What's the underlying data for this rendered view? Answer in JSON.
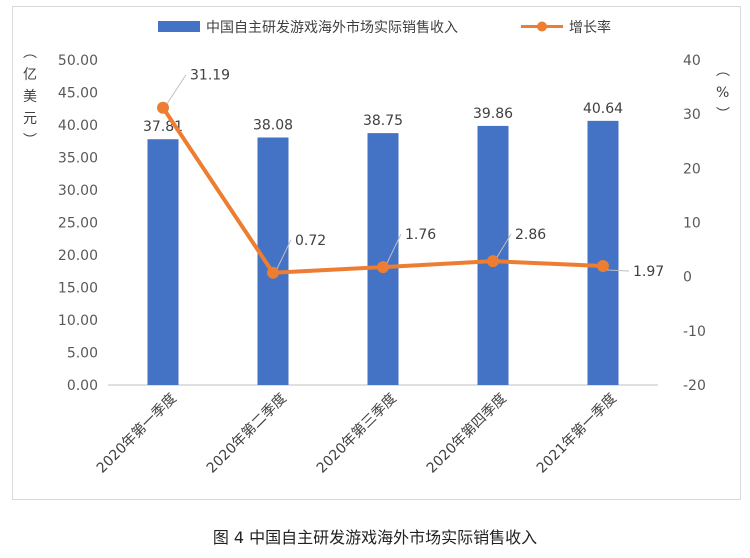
{
  "caption": "图 4  中国自主研发游戏海外市场实际销售收入",
  "chart_data": {
    "type": "bar",
    "categories": [
      "2020年第一季度",
      "2020年第二季度",
      "2020年第三季度",
      "2020年第四季度",
      "2021年第一季度"
    ],
    "series": [
      {
        "name": "中国自主研发游戏海外市场实际销售收入",
        "type": "bar",
        "axis": "left",
        "values": [
          37.81,
          38.08,
          38.75,
          39.86,
          40.64
        ],
        "value_labels": [
          "37.81",
          "38.08",
          "38.75",
          "39.86",
          "40.64"
        ]
      },
      {
        "name": "增长率",
        "type": "line",
        "axis": "right",
        "values": [
          31.19,
          0.72,
          1.76,
          2.86,
          1.97
        ],
        "value_labels": [
          "31.19",
          "0.72",
          "1.76",
          "2.86",
          "1.97"
        ]
      }
    ],
    "y_left": {
      "label": "（亿美元）",
      "min": 0,
      "max": 50,
      "ticks": [
        "0.00",
        "5.00",
        "10.00",
        "15.00",
        "20.00",
        "25.00",
        "30.00",
        "35.00",
        "40.00",
        "45.00",
        "50.00"
      ]
    },
    "y_right": {
      "label": "（%）",
      "min": -20,
      "max": 40,
      "ticks": [
        "-20",
        "-10",
        "0",
        "10",
        "20",
        "30",
        "40"
      ]
    },
    "legend_position": "top",
    "grid": false,
    "colors": {
      "bar": "#4472c4",
      "line": "#ed7d31"
    }
  }
}
